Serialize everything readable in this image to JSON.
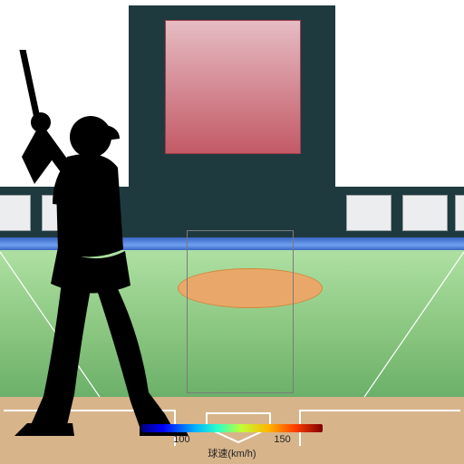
{
  "stadium": {
    "scoreboard_bg": "#1e3a3f",
    "scoreboard_screen_top": "#e6bcc3",
    "scoreboard_screen_bottom": "#c35a66",
    "stand_bg": "#1e3a3f",
    "window_bg": "#ecedee",
    "window_border": "#9aa0a6",
    "rail_gradient_a": "#3a66c4",
    "rail_gradient_b": "#6fa0f0",
    "field_top": "#aee0a2",
    "field_bottom": "#6bb06a",
    "mound_fill": "#e9a86a",
    "dirt_fill": "#d7b48a",
    "line_color": "#ffffff",
    "strike_zone_border": "#7a7a7a",
    "batter_fill": "#000000"
  },
  "legend": {
    "title": "球速(km/h)",
    "tick_labels": [
      "100",
      "150"
    ],
    "tick_values": [
      100,
      150
    ],
    "scale_min": 80,
    "scale_max": 170,
    "title_fontsize": 11,
    "tick_fontsize": 11,
    "colormap": "jet",
    "gradient_stops": [
      {
        "pct": 0,
        "color": "#00007f"
      },
      {
        "pct": 12,
        "color": "#0000ff"
      },
      {
        "pct": 30,
        "color": "#00b4ff"
      },
      {
        "pct": 42,
        "color": "#2cffca"
      },
      {
        "pct": 55,
        "color": "#c0ff36"
      },
      {
        "pct": 70,
        "color": "#ffb600"
      },
      {
        "pct": 85,
        "color": "#ff3c00"
      },
      {
        "pct": 100,
        "color": "#7f0000"
      }
    ]
  }
}
